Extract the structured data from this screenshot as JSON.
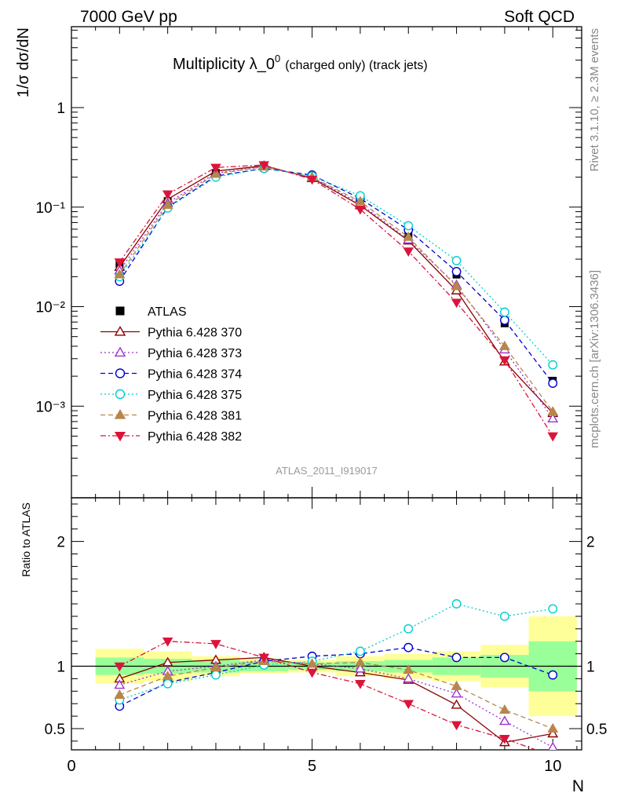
{
  "header": {
    "left": "7000 GeV pp",
    "right": "Soft QCD"
  },
  "side_labels": {
    "top": "Rivet 3.1.10, ≥ 2.3M events",
    "bottom": "mcplots.cern.ch [arXiv:1306.3436]"
  },
  "chart_data": {
    "type": "scatter",
    "title": {
      "main": "Multiplicity λ_0",
      "sup": "0",
      "small": "(charged only) (track jets)"
    },
    "watermark": "ATLAS_2011_I919017",
    "x": [
      1,
      2,
      3,
      4,
      5,
      6,
      7,
      8,
      9,
      10
    ],
    "xlabel": "N",
    "xlim": [
      0,
      10.6
    ],
    "xticks": [
      {
        "v": 0,
        "label": "0"
      },
      {
        "v": 5,
        "label": "5"
      },
      {
        "v": 10,
        "label": "10"
      }
    ],
    "main_panel": {
      "ylabel": "1/σ dσ/dN",
      "yscale": "log",
      "ylim": [
        0.00012,
        6.5
      ],
      "yticks": [
        {
          "v": 1,
          "label": "1"
        },
        {
          "v": 0.1,
          "label": "10⁻¹"
        },
        {
          "v": 0.01,
          "label": "10⁻²"
        },
        {
          "v": 0.001,
          "label": "10⁻³"
        }
      ]
    },
    "ratio_panel": {
      "ylabel": "Ratio to ATLAS",
      "ylim": [
        0.33,
        2.35
      ],
      "yticks": [
        {
          "v": 0.5,
          "label": "0.5"
        },
        {
          "v": 1,
          "label": "1"
        },
        {
          "v": 2,
          "label": "2"
        }
      ],
      "band_inner": [
        0.07,
        0.06,
        0.05,
        0.04,
        0.03,
        0.04,
        0.05,
        0.07,
        0.09,
        0.2
      ],
      "band_outer": [
        0.14,
        0.12,
        0.08,
        0.06,
        0.05,
        0.08,
        0.1,
        0.12,
        0.17,
        0.4
      ]
    },
    "legend_position": "middle-left",
    "series": [
      {
        "name": "ATLAS",
        "color": "#000000",
        "marker": "square-filled",
        "dash": "none",
        "values": [
          0.027,
          0.115,
          0.22,
          0.25,
          0.2,
          0.11,
          0.052,
          0.021,
          0.0068,
          0.0018
        ]
      },
      {
        "name": "Pythia 6.428 370",
        "color": "#8b0000",
        "marker": "triangle-open",
        "dash": "solid",
        "values": [
          0.025,
          0.12,
          0.23,
          0.26,
          0.195,
          0.104,
          0.046,
          0.0145,
          0.0028,
          0.00085
        ],
        "ratio": [
          0.9,
          1.03,
          1.05,
          1.07,
          1.0,
          0.95,
          0.89,
          0.69,
          0.39,
          0.46
        ]
      },
      {
        "name": "Pythia 6.428 373",
        "color": "#9a32cd",
        "marker": "triangle-open",
        "dash": "dotted",
        "values": [
          0.023,
          0.11,
          0.22,
          0.255,
          0.2,
          0.108,
          0.047,
          0.0165,
          0.0037,
          0.00075
        ],
        "ratio": [
          0.85,
          0.96,
          1.0,
          1.05,
          1.02,
          0.98,
          0.9,
          0.78,
          0.56,
          0.35
        ]
      },
      {
        "name": "Pythia 6.428 374",
        "color": "#0000cd",
        "marker": "circle-open",
        "dash": "dashed",
        "values": [
          0.018,
          0.1,
          0.205,
          0.245,
          0.21,
          0.122,
          0.059,
          0.0225,
          0.0073,
          0.0017
        ],
        "ratio": [
          0.68,
          0.87,
          0.95,
          1.04,
          1.08,
          1.1,
          1.15,
          1.07,
          1.07,
          0.93
        ]
      },
      {
        "name": "Pythia 6.428 375",
        "color": "#00ced1",
        "marker": "circle-open",
        "dash": "dotted",
        "values": [
          0.02,
          0.098,
          0.2,
          0.245,
          0.205,
          0.13,
          0.065,
          0.029,
          0.0088,
          0.0026
        ],
        "ratio": [
          0.73,
          0.86,
          0.93,
          1.01,
          1.04,
          1.12,
          1.3,
          1.5,
          1.4,
          1.46
        ]
      },
      {
        "name": "Pythia 6.428 381",
        "color": "#b8864b",
        "marker": "triangle-filled",
        "dash": "dashed",
        "values": [
          0.021,
          0.105,
          0.215,
          0.255,
          0.2,
          0.114,
          0.05,
          0.016,
          0.004,
          0.00088
        ],
        "ratio": [
          0.77,
          0.92,
          0.99,
          1.04,
          1.02,
          1.03,
          0.97,
          0.84,
          0.65,
          0.5
        ]
      },
      {
        "name": "Pythia 6.428 382",
        "color": "#dc143c",
        "marker": "triangle-down-filled",
        "dash": "dashdot",
        "values": [
          0.028,
          0.135,
          0.25,
          0.265,
          0.19,
          0.095,
          0.036,
          0.011,
          0.0029,
          0.0005
        ],
        "ratio": [
          1.0,
          1.2,
          1.18,
          1.07,
          0.95,
          0.86,
          0.7,
          0.53,
          0.42,
          0.28
        ]
      }
    ]
  }
}
